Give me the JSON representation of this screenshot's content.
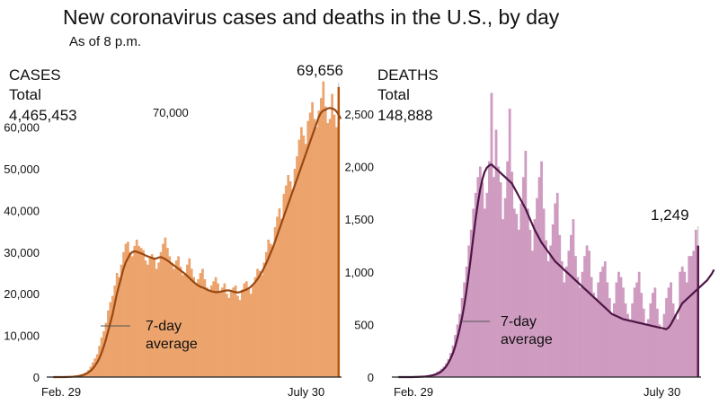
{
  "header": {
    "title": "New coronavirus cases and deaths in the U.S., by day",
    "subtitle": "As of 8 p.m."
  },
  "chart_data": [
    {
      "type": "bar",
      "panel_label": "CASES",
      "total_label": "Total",
      "total_value": "4,465,453",
      "latest_label": "69,656",
      "top_tick_label": "70,000",
      "avg_label_line1": "7-day",
      "avg_label_line2": "average",
      "x_start_label": "Feb. 29",
      "x_end_label": "July 30",
      "ylim": [
        0,
        72000
      ],
      "y_ticks": [
        {
          "value": 0,
          "label": "0"
        },
        {
          "value": 10000,
          "label": "10,000"
        },
        {
          "value": 20000,
          "label": "20,000"
        },
        {
          "value": 30000,
          "label": "30,000"
        },
        {
          "value": 40000,
          "label": "40,000"
        },
        {
          "value": 50000,
          "label": "50,000"
        },
        {
          "value": 60000,
          "label": "60,000"
        }
      ],
      "bar_color": "#eca36c",
      "line_color": "#9a4812",
      "latest_bar_color": "#b5560f",
      "grid": false,
      "series": [
        {
          "values": [
            0,
            0,
            0,
            0,
            0,
            50,
            80,
            100,
            150,
            200,
            300,
            400,
            500,
            600,
            900,
            1200,
            1700,
            2500,
            3500,
            4500,
            5500,
            7500,
            9500,
            11000,
            13000,
            16000,
            18000,
            19500,
            22000,
            25000,
            24000,
            27000,
            30000,
            32000,
            32500,
            30000,
            29000,
            31500,
            33000,
            31500,
            31000,
            30500,
            28000,
            27000,
            29000,
            29500,
            28500,
            26000,
            27500,
            30000,
            32000,
            33500,
            31000,
            29000,
            27500,
            26000,
            28000,
            29000,
            26500,
            24500,
            25000,
            27000,
            28500,
            26000,
            24000,
            22500,
            23500,
            25000,
            26000,
            23500,
            21500,
            21000,
            22000,
            23000,
            24000,
            22500,
            20500,
            21500,
            22500,
            20000,
            19000,
            20500,
            21500,
            22000,
            19500,
            18500,
            21000,
            22500,
            23000,
            21500,
            20000,
            22000,
            24000,
            26000,
            25500,
            24500,
            27500,
            30000,
            33000,
            32000,
            31500,
            36000,
            38500,
            40500,
            38000,
            44000,
            46000,
            48500,
            47000,
            45000,
            50000,
            53000,
            57000,
            60000,
            58000,
            56000,
            61500,
            63500,
            66000,
            62000,
            60000,
            64000,
            67000,
            71000,
            65000,
            61000,
            62000,
            68000,
            63000,
            60000,
            69656
          ]
        },
        {
          "values": [
            0,
            0,
            0,
            0,
            0,
            5,
            20,
            40,
            70,
            100,
            150,
            200,
            300,
            400,
            550,
            800,
            1100,
            1500,
            2000,
            2700,
            3500,
            4500,
            5800,
            7300,
            9000,
            11000,
            13000,
            15000,
            17500,
            20000,
            22000,
            24000,
            26000,
            27500,
            28500,
            29500,
            30000,
            30200,
            30100,
            29900,
            29700,
            29500,
            29200,
            29000,
            28800,
            28600,
            28400,
            28500,
            28700,
            28800,
            28600,
            28300,
            28000,
            27600,
            27200,
            26800,
            26400,
            26000,
            25600,
            25200,
            24800,
            24300,
            23800,
            23300,
            22800,
            22400,
            22000,
            21700,
            21500,
            21300,
            21000,
            20800,
            20600,
            20500,
            20400,
            20400,
            20500,
            20600,
            20700,
            20800,
            20800,
            20700,
            20500,
            20400,
            20300,
            20400,
            20600,
            20800,
            21000,
            21300,
            21700,
            22200,
            22800,
            23500,
            24300,
            25200,
            26200,
            27300,
            28500,
            29800,
            31000,
            32500,
            34000,
            35500,
            37000,
            38500,
            40000,
            41500,
            43000,
            44500,
            46000,
            47500,
            49000,
            50500,
            52000,
            53500,
            55000,
            56500,
            58000,
            59500,
            61000,
            62500,
            63500,
            64000,
            64200,
            64500,
            64600,
            64500,
            64300,
            63800,
            63000,
            62000
          ]
        }
      ]
    },
    {
      "type": "bar",
      "panel_label": "DEATHS",
      "total_label": "Total",
      "total_value": "148,888",
      "latest_label": "1,249",
      "avg_label_line1": "7-day",
      "avg_label_line2": "average",
      "x_start_label": "Feb. 29",
      "x_end_label": "July 30",
      "ylim": [
        0,
        2900
      ],
      "y_ticks": [
        {
          "value": 0,
          "label": "0"
        },
        {
          "value": 500,
          "label": "500"
        },
        {
          "value": 1000,
          "label": "1,000"
        },
        {
          "value": 1500,
          "label": "1,500"
        },
        {
          "value": 2000,
          "label": "2,000"
        },
        {
          "value": 2500,
          "label": "2,500"
        }
      ],
      "bar_color": "#cf9bc0",
      "line_color": "#4d1645",
      "latest_bar_color": "#5a1a52",
      "grid": false,
      "series": [
        {
          "values": [
            0,
            0,
            0,
            0,
            0,
            0,
            1,
            2,
            3,
            4,
            6,
            8,
            10,
            15,
            20,
            25,
            35,
            50,
            60,
            80,
            100,
            130,
            170,
            230,
            300,
            400,
            500,
            600,
            750,
            900,
            1050,
            1250,
            1400,
            1600,
            1750,
            1900,
            2000,
            1850,
            1600,
            1750,
            2050,
            2700,
            1900,
            2350,
            2000,
            1850,
            1500,
            1700,
            2050,
            2550,
            1950,
            1600,
            1550,
            1400,
            1650,
            1900,
            2150,
            1600,
            1400,
            1200,
            1500,
            1700,
            1900,
            2050,
            1600,
            1300,
            1100,
            1250,
            1450,
            1650,
            1750,
            1350,
            1100,
            900,
            1050,
            1200,
            1350,
            1500,
            1150,
            950,
            850,
            1000,
            1150,
            1250,
            1200,
            950,
            800,
            750,
            900,
            1000,
            1050,
            1100,
            900,
            750,
            600,
            700,
            900,
            1000,
            950,
            850,
            700,
            600,
            550,
            700,
            850,
            900,
            1000,
            800,
            650,
            500,
            550,
            700,
            800,
            850,
            650,
            500,
            450,
            600,
            750,
            850,
            900,
            700,
            600,
            550,
            1000,
            1050,
            1000,
            900,
            1150,
            1150,
            1200,
            1400,
            1249
          ]
        },
        {
          "values": [
            0,
            0,
            0,
            0,
            0,
            0,
            0,
            1,
            1,
            2,
            3,
            4,
            6,
            9,
            12,
            16,
            22,
            30,
            40,
            55,
            75,
            100,
            135,
            175,
            225,
            290,
            370,
            460,
            560,
            680,
            820,
            980,
            1150,
            1330,
            1500,
            1650,
            1780,
            1880,
            1950,
            1990,
            2010,
            2020,
            2000,
            1980,
            1960,
            1940,
            1920,
            1900,
            1880,
            1860,
            1840,
            1800,
            1760,
            1720,
            1680,
            1640,
            1600,
            1550,
            1500,
            1450,
            1400,
            1360,
            1320,
            1280,
            1250,
            1220,
            1190,
            1160,
            1130,
            1100,
            1080,
            1060,
            1040,
            1020,
            1000,
            980,
            960,
            940,
            920,
            900,
            880,
            860,
            840,
            820,
            800,
            780,
            760,
            740,
            720,
            700,
            680,
            660,
            640,
            620,
            600,
            590,
            580,
            570,
            560,
            550,
            545,
            540,
            535,
            530,
            525,
            520,
            515,
            510,
            505,
            500,
            495,
            490,
            485,
            480,
            475,
            470,
            465,
            460,
            455,
            470,
            500,
            540,
            580,
            620,
            660,
            700,
            720,
            740,
            760,
            780,
            800,
            820,
            840,
            860,
            880,
            900,
            920,
            950,
            980,
            1020
          ]
        }
      ]
    }
  ]
}
